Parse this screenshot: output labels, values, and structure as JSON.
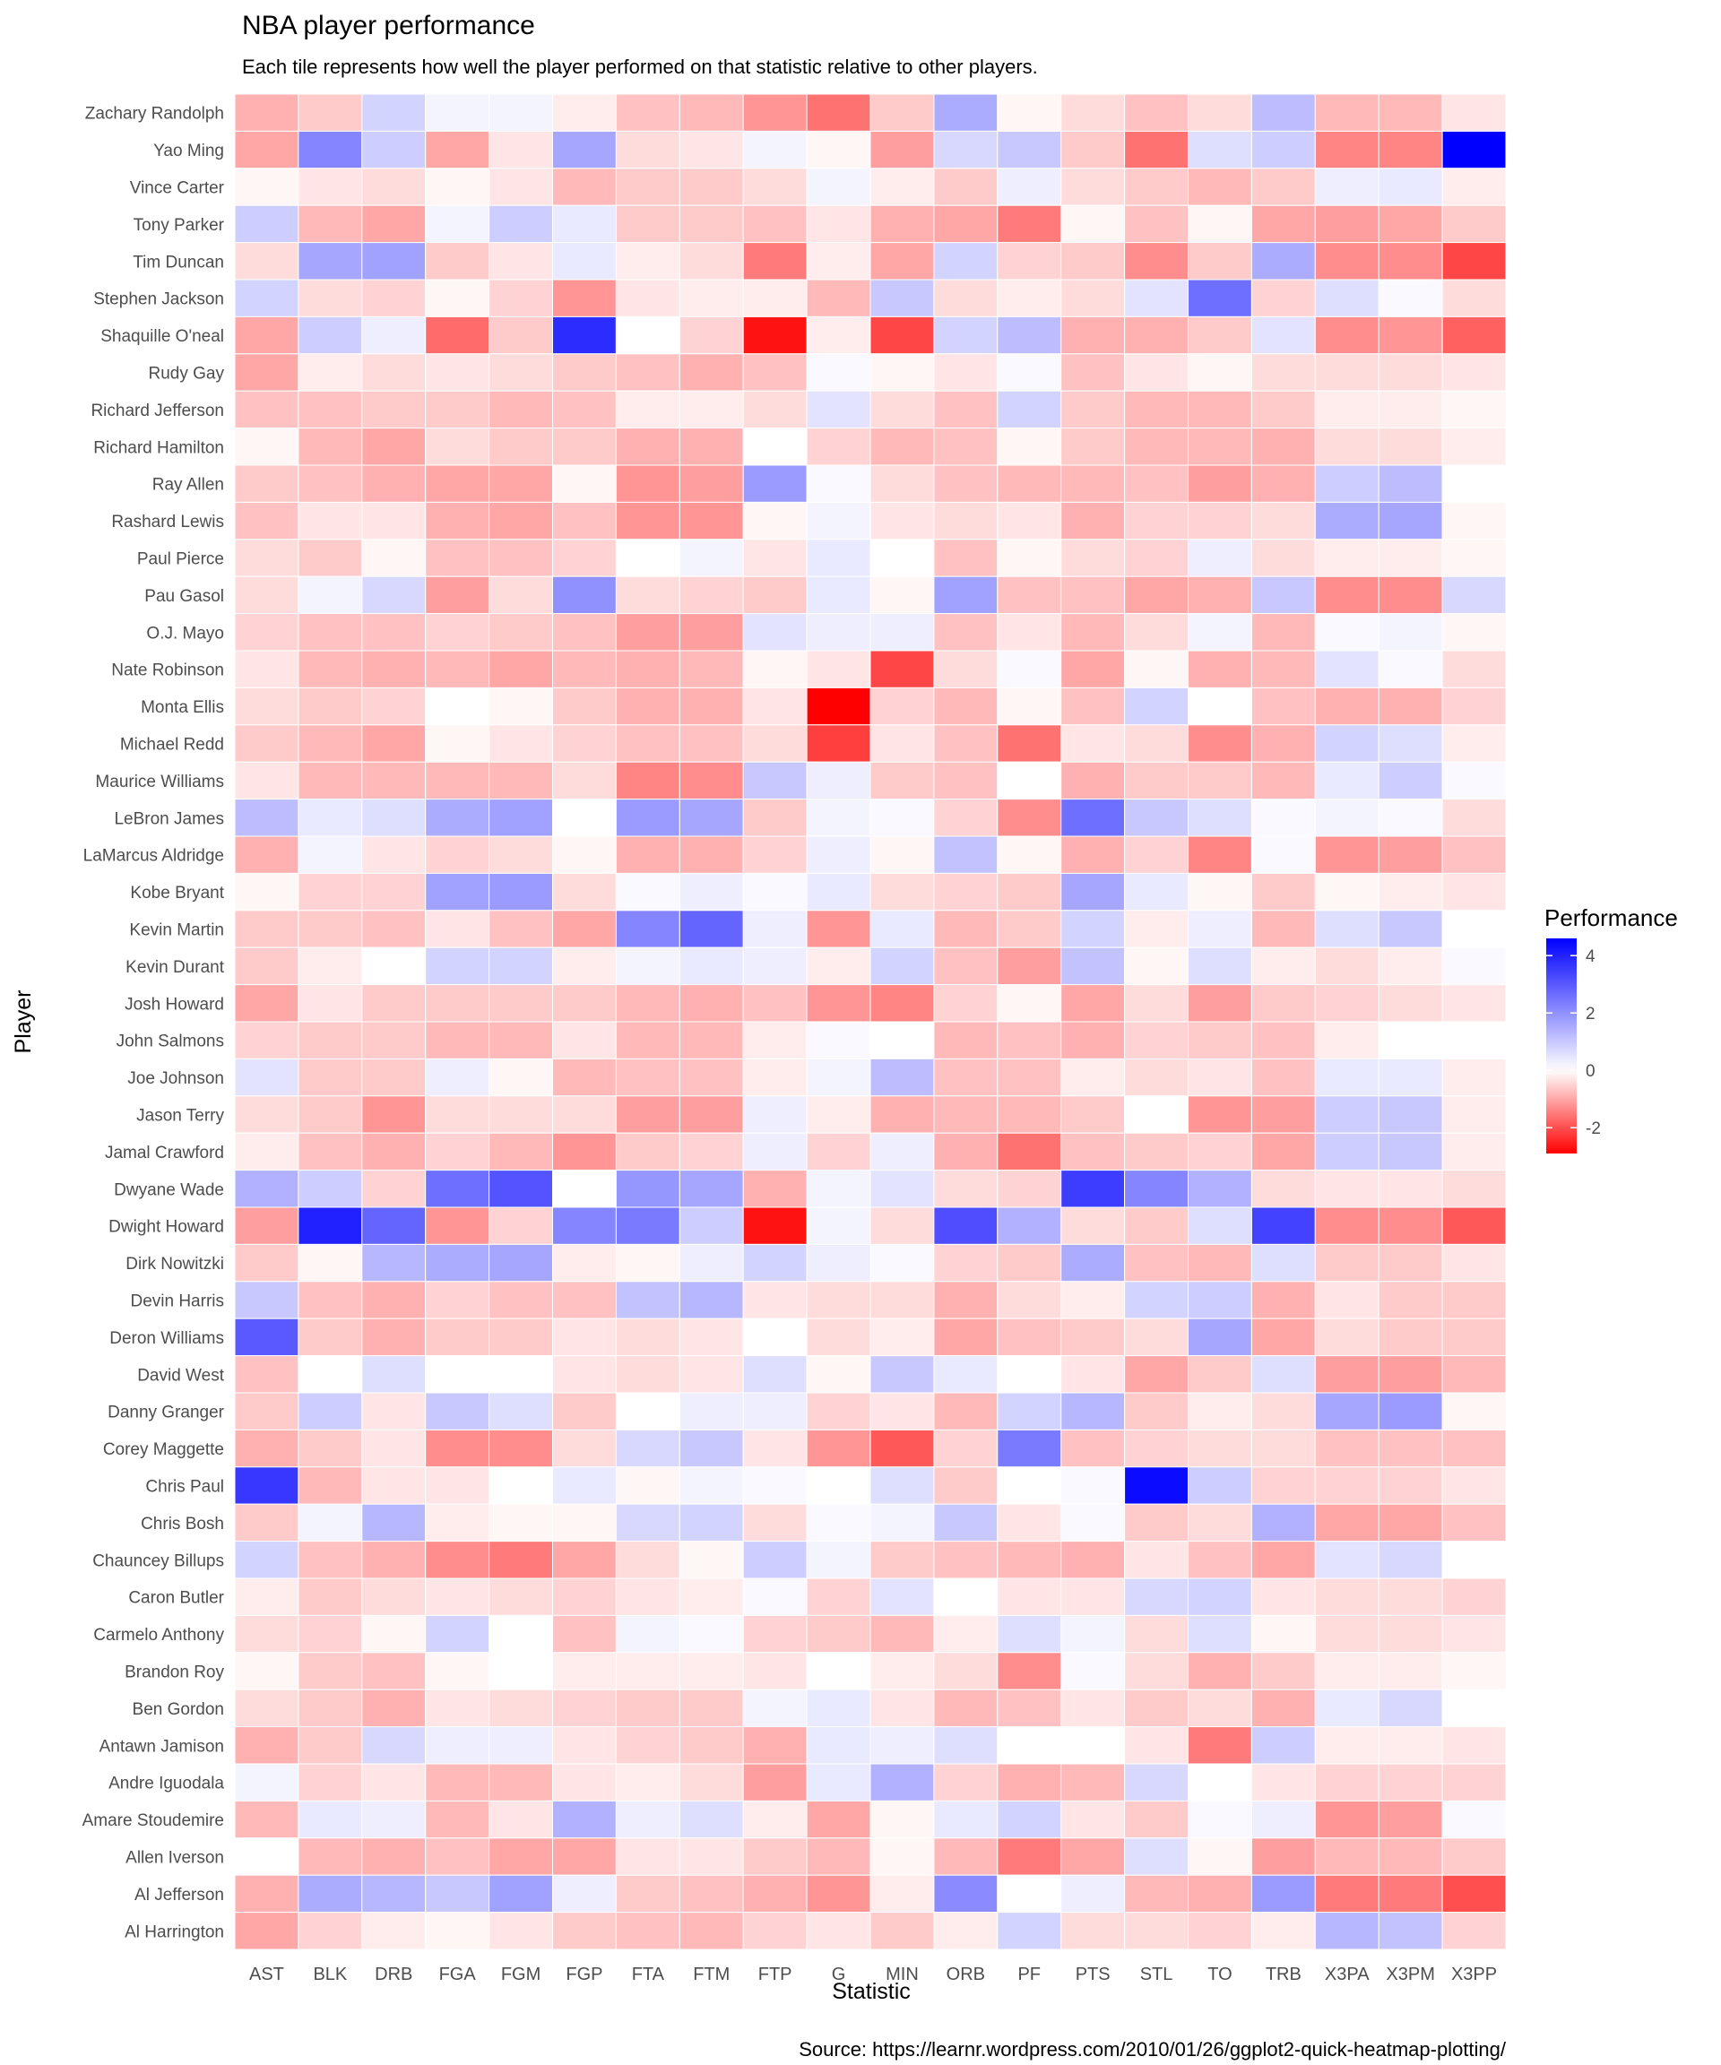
{
  "chart_data": {
    "type": "heatmap",
    "title": "NBA player performance",
    "subtitle": "Each tile represents how well the player performed on that statistic relative to other players.",
    "xlabel": "Statistic",
    "ylabel": "Player",
    "caption": "Source: https://learnr.wordpress.com/2010/01/26/ggplot2-quick-heatmap-plotting/",
    "legend": {
      "title": "Performance",
      "position": "right",
      "breaks": [
        4,
        2,
        0,
        -2
      ],
      "break_labels": [
        "4",
        "2",
        "0",
        "-2"
      ],
      "min": -2.9,
      "max": 4.6,
      "low_color": "#ff0000",
      "mid_color": "#ffffff",
      "high_color": "#0000ff"
    },
    "x_categories": [
      "AST",
      "BLK",
      "DRB",
      "FGA",
      "FGM",
      "FGP",
      "FTA",
      "FTM",
      "FTP",
      "G",
      "MIN",
      "ORB",
      "PF",
      "PTS",
      "STL",
      "TO",
      "TRB",
      "X3PA",
      "X3PM",
      "X3PP"
    ],
    "y_categories": [
      "Zachary Randolph",
      "Yao Ming",
      "Vince Carter",
      "Tony Parker",
      "Tim Duncan",
      "Stephen Jackson",
      "Shaquille O'neal",
      "Rudy Gay",
      "Richard Jefferson",
      "Richard Hamilton",
      "Ray Allen",
      "Rashard Lewis",
      "Paul Pierce",
      "Pau Gasol",
      "O.J. Mayo",
      "Nate Robinson",
      "Monta Ellis",
      "Michael Redd",
      "Maurice Williams",
      "LeBron James",
      "LaMarcus Aldridge",
      "Kobe Bryant",
      "Kevin Martin",
      "Kevin Durant",
      "Josh Howard",
      "John Salmons",
      "Joe Johnson",
      "Jason Terry",
      "Jamal Crawford",
      "Dwyane Wade",
      "Dwight Howard",
      "Dirk Nowitzki",
      "Devin Harris",
      "Deron Williams",
      "David West",
      "Danny Granger",
      "Corey Maggette",
      "Chris Paul",
      "Chris Bosh",
      "Chauncey Billups",
      "Caron Butler",
      "Carmelo Anthony",
      "Brandon Roy",
      "Ben Gordon",
      "Antawn Jamison",
      "Andre Iguodala",
      "Amare Stoudemire",
      "Allen Iverson",
      "Al Jefferson",
      "Al Harrington"
    ],
    "values": [
      [
        -0.9,
        -0.6,
        0.8,
        0.2,
        0.2,
        -0.2,
        -0.7,
        -0.8,
        -1.2,
        -1.6,
        -0.6,
        1.5,
        -0.1,
        -0.4,
        -0.7,
        -0.4,
        1.2,
        -0.8,
        -0.8,
        -0.3
      ],
      [
        -1.0,
        2.2,
        0.9,
        -1.0,
        -0.3,
        1.6,
        -0.4,
        -0.3,
        0.2,
        -0.1,
        -1.1,
        0.7,
        1.0,
        -0.6,
        -1.6,
        0.6,
        0.9,
        -1.4,
        -1.4,
        4.6
      ],
      [
        -0.1,
        -0.3,
        -0.4,
        -0.1,
        -0.3,
        -0.8,
        -0.6,
        -0.6,
        -0.4,
        0.2,
        -0.2,
        -0.6,
        0.3,
        -0.4,
        -0.6,
        -0.8,
        -0.6,
        0.3,
        0.4,
        -0.2
      ],
      [
        0.9,
        -0.8,
        -1.0,
        0.2,
        0.9,
        0.4,
        -0.6,
        -0.6,
        -0.7,
        -0.3,
        -0.9,
        -1.0,
        -1.5,
        -0.1,
        -0.7,
        -0.1,
        -1.0,
        -1.1,
        -1.0,
        -0.6
      ],
      [
        -0.4,
        1.6,
        1.7,
        -0.6,
        -0.3,
        0.4,
        -0.2,
        -0.4,
        -1.5,
        -0.2,
        -1.0,
        0.8,
        -0.5,
        -0.6,
        -1.3,
        -0.6,
        1.5,
        -1.3,
        -1.3,
        -2.1
      ],
      [
        0.8,
        -0.4,
        -0.5,
        -0.1,
        -0.5,
        -1.2,
        -0.3,
        -0.2,
        -0.2,
        -0.8,
        1.0,
        -0.4,
        -0.2,
        -0.4,
        0.5,
        2.6,
        -0.5,
        0.6,
        0.1,
        -0.4
      ],
      [
        -1.0,
        0.9,
        0.3,
        -1.7,
        -0.6,
        3.8,
        0.0,
        -0.5,
        -2.7,
        -0.2,
        -2.1,
        0.8,
        1.2,
        -0.9,
        -0.9,
        -0.6,
        0.5,
        -1.3,
        -1.2,
        -1.8
      ],
      [
        -1.0,
        -0.2,
        -0.4,
        -0.3,
        -0.4,
        -0.6,
        -0.7,
        -0.9,
        -0.7,
        0.1,
        -0.1,
        -0.3,
        0.1,
        -0.7,
        -0.3,
        -0.1,
        -0.4,
        -0.4,
        -0.4,
        -0.3
      ],
      [
        -0.7,
        -0.7,
        -0.6,
        -0.6,
        -0.8,
        -0.7,
        -0.2,
        -0.2,
        -0.4,
        0.5,
        -0.4,
        -0.7,
        0.8,
        -0.6,
        -0.8,
        -0.8,
        -0.6,
        -0.2,
        -0.2,
        -0.1
      ],
      [
        -0.1,
        -0.8,
        -1.0,
        -0.4,
        -0.6,
        -0.6,
        -0.9,
        -0.9,
        0.0,
        -0.5,
        -0.8,
        -0.7,
        -0.1,
        -0.6,
        -0.8,
        -0.8,
        -0.9,
        -0.4,
        -0.4,
        -0.2
      ],
      [
        -0.6,
        -0.7,
        -0.9,
        -1.0,
        -1.0,
        -0.1,
        -1.2,
        -1.1,
        1.8,
        0.1,
        -0.4,
        -0.7,
        -0.8,
        -0.8,
        -0.7,
        -1.1,
        -0.9,
        0.9,
        1.2,
        0.0
      ],
      [
        -0.7,
        -0.3,
        -0.3,
        -0.9,
        -1.0,
        -0.7,
        -1.2,
        -1.2,
        -0.1,
        0.2,
        -0.3,
        -0.4,
        -0.3,
        -0.9,
        -0.5,
        -0.5,
        -0.4,
        1.5,
        1.6,
        -0.1
      ],
      [
        -0.4,
        -0.6,
        -0.1,
        -0.7,
        -0.7,
        -0.5,
        0.0,
        0.2,
        -0.3,
        0.4,
        0.0,
        -0.7,
        -0.1,
        -0.4,
        -0.5,
        0.3,
        -0.4,
        -0.2,
        -0.2,
        -0.1
      ],
      [
        -0.4,
        0.2,
        0.7,
        -1.1,
        -0.4,
        2.0,
        -0.4,
        -0.5,
        -0.6,
        0.4,
        -0.1,
        1.7,
        -0.7,
        -0.7,
        -1.0,
        -0.9,
        1.0,
        -1.3,
        -1.3,
        0.7
      ],
      [
        -0.5,
        -0.7,
        -0.7,
        -0.5,
        -0.6,
        -0.7,
        -1.1,
        -1.1,
        0.5,
        0.3,
        0.3,
        -0.7,
        -0.3,
        -0.8,
        -0.4,
        0.2,
        -0.8,
        0.1,
        0.2,
        -0.1
      ],
      [
        -0.3,
        -0.8,
        -0.9,
        -0.8,
        -1.0,
        -0.8,
        -0.9,
        -0.8,
        -0.1,
        -0.3,
        -2.1,
        -0.4,
        0.1,
        -1.0,
        -0.1,
        -0.9,
        -0.8,
        0.5,
        0.1,
        -0.4
      ],
      [
        -0.4,
        -0.6,
        -0.5,
        0.0,
        -0.1,
        -0.6,
        -0.9,
        -0.9,
        -0.3,
        -2.9,
        -0.5,
        -0.8,
        -0.1,
        -0.7,
        0.8,
        0.0,
        -0.7,
        -0.9,
        -0.9,
        -0.5
      ],
      [
        -0.6,
        -0.8,
        -1.0,
        -0.1,
        -0.3,
        -0.5,
        -0.7,
        -0.7,
        -0.4,
        -2.2,
        -0.3,
        -0.7,
        -1.6,
        -0.3,
        -0.4,
        -1.3,
        -0.9,
        0.8,
        0.6,
        -0.2
      ],
      [
        -0.3,
        -0.8,
        -0.8,
        -0.8,
        -0.8,
        -0.4,
        -1.4,
        -1.3,
        1.0,
        0.3,
        -0.6,
        -0.7,
        0.0,
        -0.9,
        -0.6,
        -0.6,
        -0.8,
        0.4,
        0.9,
        0.1
      ],
      [
        1.2,
        0.4,
        0.6,
        1.5,
        1.7,
        0.0,
        1.8,
        1.6,
        -0.6,
        0.2,
        0.1,
        -0.5,
        -1.3,
        2.6,
        1.0,
        0.6,
        0.1,
        0.2,
        0.1,
        -0.4
      ],
      [
        -0.9,
        0.2,
        -0.3,
        -0.5,
        -0.4,
        -0.1,
        -0.9,
        -0.9,
        -0.5,
        0.3,
        -0.1,
        1.1,
        -0.1,
        -0.9,
        -0.5,
        -1.4,
        0.1,
        -1.2,
        -1.1,
        -0.7
      ],
      [
        -0.1,
        -0.5,
        -0.5,
        1.7,
        1.8,
        -0.4,
        0.1,
        0.3,
        0.1,
        0.4,
        -0.4,
        -0.5,
        -0.6,
        1.6,
        0.4,
        -0.1,
        -0.6,
        -0.1,
        -0.2,
        -0.3
      ],
      [
        -0.6,
        -0.6,
        -0.7,
        -0.3,
        -0.7,
        -1.0,
        2.2,
        2.8,
        0.3,
        -1.2,
        0.4,
        -0.8,
        -0.6,
        0.8,
        -0.2,
        0.3,
        -0.8,
        0.6,
        1.0,
        0.0
      ],
      [
        -0.6,
        -0.2,
        0.0,
        0.8,
        0.8,
        -0.2,
        0.2,
        0.4,
        0.3,
        -0.2,
        0.8,
        -0.7,
        -1.1,
        1.1,
        -0.1,
        0.6,
        -0.2,
        -0.4,
        -0.2,
        0.1
      ],
      [
        -1.0,
        -0.3,
        -0.6,
        -0.6,
        -0.6,
        -0.6,
        -0.8,
        -0.9,
        -0.7,
        -1.2,
        -1.4,
        -0.5,
        -0.1,
        -1.0,
        -0.4,
        -1.1,
        -0.6,
        -0.5,
        -0.4,
        -0.3
      ],
      [
        -0.5,
        -0.6,
        -0.6,
        -0.8,
        -0.8,
        -0.3,
        -0.8,
        -0.8,
        -0.2,
        0.1,
        0.0,
        -0.8,
        -0.7,
        -0.9,
        -0.5,
        -0.6,
        -0.7,
        -0.2,
        0.0,
        0.0
      ],
      [
        0.5,
        -0.6,
        -0.6,
        0.3,
        -0.1,
        -0.8,
        -0.7,
        -0.7,
        -0.2,
        0.2,
        1.2,
        -0.7,
        -0.7,
        -0.2,
        -0.4,
        -0.3,
        -0.7,
        0.4,
        0.4,
        -0.2
      ],
      [
        -0.4,
        -0.6,
        -1.2,
        -0.4,
        -0.4,
        -0.4,
        -1.1,
        -1.1,
        0.3,
        -0.2,
        -0.9,
        -0.8,
        -0.8,
        -0.6,
        0.0,
        -1.2,
        -1.1,
        0.9,
        1.0,
        -0.2
      ],
      [
        -0.2,
        -0.7,
        -0.9,
        -0.5,
        -0.8,
        -1.2,
        -0.6,
        -0.5,
        0.3,
        -0.5,
        0.3,
        -0.9,
        -1.6,
        -0.7,
        -0.6,
        -0.5,
        -1.0,
        0.9,
        1.0,
        -0.2
      ],
      [
        1.4,
        0.9,
        -0.5,
        2.6,
        3.1,
        0.0,
        1.9,
        1.6,
        -0.9,
        0.2,
        0.5,
        -0.4,
        -0.5,
        3.5,
        2.2,
        1.4,
        -0.4,
        -0.3,
        -0.3,
        -0.4
      ],
      [
        -1.1,
        4.0,
        2.8,
        -1.2,
        -0.5,
        2.2,
        2.4,
        0.9,
        -2.7,
        0.2,
        -0.4,
        3.2,
        1.4,
        -0.4,
        -0.6,
        0.6,
        3.4,
        -1.3,
        -1.3,
        -1.9
      ],
      [
        -0.6,
        -0.1,
        1.3,
        1.5,
        1.6,
        -0.2,
        -0.1,
        0.3,
        0.8,
        0.3,
        0.1,
        -0.5,
        -0.6,
        1.5,
        -0.7,
        -0.8,
        0.6,
        -0.6,
        -0.6,
        -0.3
      ],
      [
        1.0,
        -0.7,
        -0.9,
        -0.5,
        -0.7,
        -0.7,
        1.1,
        1.3,
        -0.3,
        -0.4,
        -0.4,
        -0.9,
        -0.4,
        -0.2,
        0.8,
        0.9,
        -0.9,
        -0.3,
        -0.6,
        -0.6
      ],
      [
        3.0,
        -0.6,
        -0.9,
        -0.6,
        -0.6,
        -0.3,
        -0.4,
        -0.3,
        0.0,
        -0.4,
        -0.2,
        -1.0,
        -0.7,
        -0.6,
        -0.4,
        1.6,
        -1.0,
        -0.4,
        -0.6,
        -0.6
      ],
      [
        -0.7,
        0.0,
        0.6,
        0.0,
        0.0,
        -0.3,
        -0.4,
        -0.3,
        0.6,
        -0.1,
        1.0,
        0.4,
        0.0,
        -0.3,
        -1.0,
        -0.6,
        0.6,
        -1.1,
        -1.1,
        -0.8
      ],
      [
        -0.6,
        0.9,
        -0.3,
        1.0,
        0.6,
        -0.6,
        0.0,
        0.3,
        0.3,
        -0.5,
        -0.3,
        -0.8,
        0.8,
        1.3,
        -0.6,
        -0.2,
        -0.4,
        1.6,
        1.8,
        -0.1
      ],
      [
        -0.9,
        -0.6,
        -0.3,
        -1.3,
        -1.3,
        -0.4,
        0.7,
        1.0,
        -0.3,
        -1.2,
        -1.9,
        -0.5,
        2.4,
        -0.7,
        -0.5,
        -0.4,
        -0.4,
        -0.7,
        -0.7,
        -0.7
      ],
      [
        3.6,
        -0.8,
        -0.3,
        -0.3,
        0.0,
        0.4,
        -0.1,
        0.2,
        0.1,
        0.0,
        0.6,
        -0.6,
        0.0,
        0.1,
        4.4,
        0.9,
        -0.5,
        -0.5,
        -0.5,
        -0.3
      ],
      [
        -0.6,
        0.2,
        1.3,
        -0.2,
        -0.1,
        -0.1,
        0.7,
        0.8,
        -0.4,
        0.1,
        0.2,
        1.0,
        -0.3,
        0.1,
        -0.6,
        -0.4,
        1.4,
        -1.0,
        -1.0,
        -0.7
      ],
      [
        0.8,
        -0.7,
        -0.9,
        -1.3,
        -1.5,
        -1.0,
        -0.4,
        -0.1,
        0.9,
        0.2,
        -0.6,
        -0.7,
        -0.8,
        -0.9,
        -0.3,
        -0.7,
        -1.0,
        0.5,
        0.7,
        0.0
      ],
      [
        -0.2,
        -0.6,
        -0.4,
        -0.3,
        -0.4,
        -0.5,
        -0.3,
        -0.2,
        0.1,
        -0.5,
        0.5,
        0.0,
        -0.3,
        -0.3,
        0.7,
        0.8,
        -0.3,
        -0.4,
        -0.4,
        -0.5
      ],
      [
        -0.4,
        -0.5,
        -0.1,
        0.8,
        0.0,
        -0.7,
        0.2,
        0.1,
        -0.5,
        -0.6,
        -0.8,
        -0.2,
        0.6,
        0.2,
        -0.4,
        0.6,
        -0.1,
        -0.4,
        -0.4,
        -0.3
      ],
      [
        -0.1,
        -0.6,
        -0.7,
        -0.1,
        0.0,
        -0.2,
        -0.2,
        -0.2,
        -0.3,
        0.0,
        -0.2,
        -0.4,
        -1.3,
        0.1,
        -0.4,
        -0.9,
        -0.6,
        -0.2,
        -0.2,
        -0.1
      ],
      [
        -0.4,
        -0.6,
        -0.9,
        -0.3,
        -0.4,
        -0.5,
        -0.6,
        -0.6,
        0.2,
        0.4,
        -0.3,
        -0.8,
        -0.7,
        -0.3,
        -0.6,
        -0.4,
        -0.9,
        0.4,
        0.7,
        0.0
      ],
      [
        -0.9,
        -0.6,
        0.7,
        0.3,
        0.3,
        -0.3,
        -0.5,
        -0.6,
        -0.9,
        0.4,
        0.3,
        0.6,
        0.0,
        0.0,
        -0.3,
        -1.5,
        0.9,
        -0.2,
        -0.2,
        -0.3
      ],
      [
        0.2,
        -0.5,
        -0.3,
        -0.8,
        -0.8,
        -0.3,
        -0.2,
        -0.4,
        -1.1,
        0.4,
        1.4,
        -0.5,
        -0.9,
        -0.8,
        0.7,
        0.0,
        -0.3,
        -0.5,
        -0.5,
        -0.5
      ],
      [
        -0.8,
        0.4,
        0.3,
        -0.8,
        -0.3,
        1.4,
        0.3,
        0.6,
        -0.2,
        -1.0,
        -0.1,
        0.4,
        0.8,
        -0.3,
        -0.6,
        0.1,
        0.3,
        -1.2,
        -1.1,
        0.1
      ],
      [
        0.0,
        -0.8,
        -0.9,
        -0.7,
        -1.0,
        -1.0,
        -0.3,
        -0.3,
        -0.6,
        -0.8,
        -0.1,
        -0.8,
        -1.5,
        -1.0,
        0.6,
        -0.1,
        -1.1,
        -0.8,
        -0.8,
        -0.6
      ],
      [
        -0.9,
        1.5,
        1.3,
        1.0,
        1.7,
        0.3,
        -0.6,
        -0.7,
        -0.9,
        -1.2,
        -0.2,
        2.1,
        0.0,
        0.3,
        -0.8,
        -0.9,
        1.8,
        -1.5,
        -1.5,
        -2.0
      ],
      [
        -1.0,
        -0.5,
        -0.2,
        -0.1,
        -0.3,
        -0.6,
        -0.7,
        -0.8,
        -0.5,
        -0.3,
        -0.6,
        -0.2,
        0.8,
        -0.4,
        -0.4,
        -0.5,
        -0.2,
        1.3,
        1.1,
        -0.5
      ]
    ]
  }
}
